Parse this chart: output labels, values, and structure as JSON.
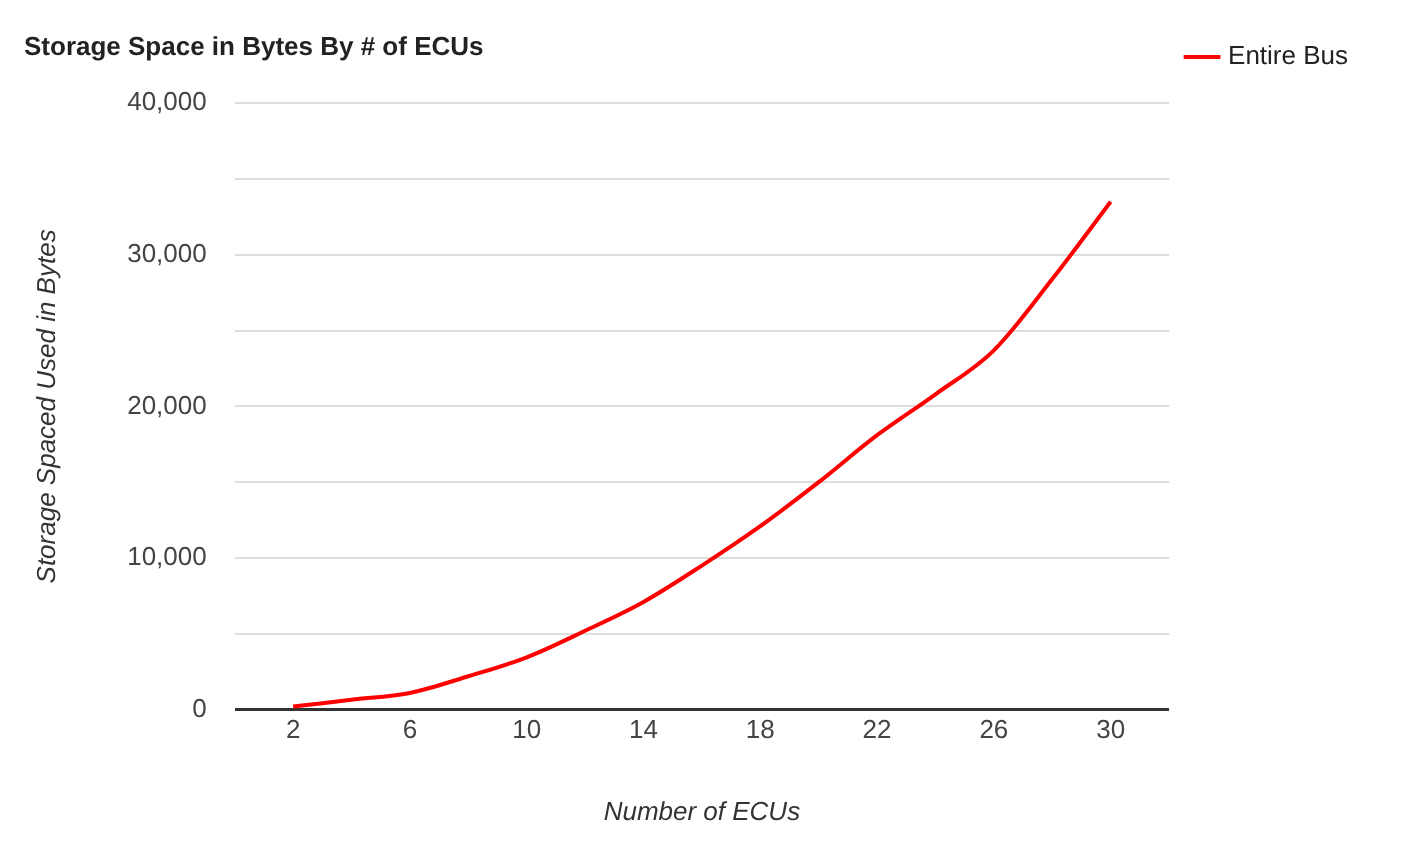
{
  "chart_data": {
    "type": "line",
    "title": "Storage Space in Bytes By # of ECUs",
    "xlabel": "Number of ECUs",
    "ylabel": "Storage Spaced Used in Bytes",
    "x": [
      2,
      4,
      6,
      8,
      10,
      12,
      14,
      16,
      18,
      20,
      22,
      24,
      26,
      28,
      30
    ],
    "series": [
      {
        "name": "Entire Bus",
        "color": "#ff0000",
        "values": [
          200,
          650,
          1100,
          2200,
          3450,
          5200,
          7100,
          9500,
          12100,
          15000,
          18100,
          20800,
          23700,
          28400,
          33500
        ]
      }
    ],
    "xlim": [
      0,
      32
    ],
    "xticks": [
      2,
      6,
      10,
      14,
      18,
      22,
      26,
      30
    ],
    "ylim": [
      0,
      40000
    ],
    "yticks": [
      {
        "value": 0,
        "label": "0"
      },
      {
        "value": 5000,
        "label": null
      },
      {
        "value": 10000,
        "label": "10,000"
      },
      {
        "value": 15000,
        "label": null
      },
      {
        "value": 20000,
        "label": "20,000"
      },
      {
        "value": 25000,
        "label": null
      },
      {
        "value": 30000,
        "label": "30,000"
      },
      {
        "value": 35000,
        "label": null
      },
      {
        "value": 40000,
        "label": "40,000"
      }
    ],
    "grid": "y",
    "legend": "top right",
    "marker": "none",
    "line_style": "solid"
  }
}
